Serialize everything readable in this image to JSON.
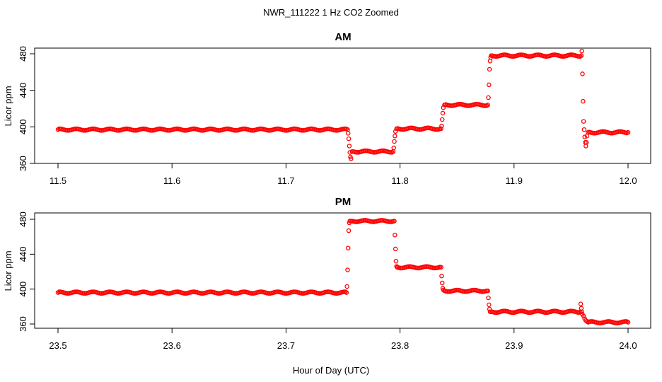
{
  "figure": {
    "title": "NWR_111222  1 Hz CO2 Zoomed",
    "xlabel": "Hour of Day (UTC)"
  },
  "chart_data": [
    {
      "type": "scatter",
      "title": "AM",
      "xlabel": "",
      "ylabel": "Licor ppm",
      "xlim": [
        11.5,
        12.0
      ],
      "ylim": [
        360,
        485
      ],
      "xticks": [
        "11.5",
        "11.6",
        "11.7",
        "11.8",
        "11.9",
        "12.0"
      ],
      "yticks": [
        "360",
        "400",
        "440",
        "480"
      ],
      "grid": false,
      "legend": "none",
      "marker": "open-circle",
      "color": "#ff0000",
      "series": [
        {
          "x": [
            11.5,
            11.754,
            11.7545,
            11.755,
            11.7555,
            11.756,
            11.7565,
            11.757,
            11.758,
            11.794,
            11.7945,
            11.795,
            11.7955,
            11.796,
            11.797,
            11.836,
            11.8365,
            11.837,
            11.8375,
            11.838,
            11.839,
            11.877,
            11.8775,
            11.878,
            11.8785,
            11.879,
            11.8795,
            11.88,
            11.959,
            11.9595,
            11.96,
            11.9605,
            11.961,
            11.9615,
            11.962,
            11.9625,
            11.963,
            11.9635,
            11.964,
            11.965,
            12.0
          ],
          "y": [
            397,
            397,
            393,
            387,
            379,
            372,
            367,
            365,
            373,
            373,
            377,
            384,
            390,
            395,
            398,
            398,
            401,
            408,
            415,
            421,
            424,
            424,
            432,
            446,
            463,
            472,
            476,
            478,
            478,
            483,
            458,
            428,
            406,
            397,
            389,
            383,
            379,
            383,
            390,
            394,
            394
          ]
        }
      ]
    },
    {
      "type": "scatter",
      "title": "PM",
      "xlabel": "",
      "ylabel": "Licor ppm",
      "xlim": [
        23.5,
        24.0
      ],
      "ylim": [
        356,
        485
      ],
      "xticks": [
        "23.5",
        "23.6",
        "23.7",
        "23.8",
        "23.9",
        "24.0"
      ],
      "yticks": [
        "360",
        "400",
        "440",
        "480"
      ],
      "grid": false,
      "legend": "none",
      "marker": "open-circle",
      "color": "#ff0000",
      "series": [
        {
          "x": [
            23.5,
            23.753,
            23.7535,
            23.754,
            23.7545,
            23.755,
            23.7555,
            23.756,
            23.757,
            23.795,
            23.7955,
            23.796,
            23.7965,
            23.797,
            23.7975,
            23.798,
            23.836,
            23.8365,
            23.837,
            23.8375,
            23.838,
            23.839,
            23.877,
            23.8775,
            23.878,
            23.8785,
            23.879,
            23.88,
            23.958,
            23.9585,
            23.959,
            23.9595,
            23.96,
            23.961,
            23.962,
            23.963,
            23.964,
            23.965,
            24.0
          ],
          "y": [
            396,
            396,
            403,
            422,
            447,
            467,
            476,
            478,
            478,
            478,
            462,
            446,
            432,
            426,
            425,
            425,
            425,
            415,
            407,
            401,
            399,
            398,
            398,
            390,
            382,
            377,
            374,
            374,
            374,
            383,
            378,
            374,
            371,
            369,
            366,
            364,
            363,
            362,
            362
          ]
        }
      ]
    }
  ]
}
